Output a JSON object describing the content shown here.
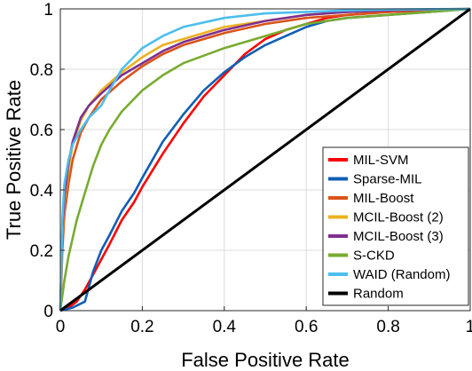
{
  "chart_data": {
    "type": "line",
    "xlabel": "False Positive Rate",
    "ylabel": "True Positive Rate",
    "xlim": [
      0,
      1
    ],
    "ylim": [
      0,
      1
    ],
    "xticks": [
      "0",
      "0.2",
      "0.4",
      "0.6",
      "0.8",
      "1"
    ],
    "yticks": [
      "0",
      "0.2",
      "0.4",
      "0.6",
      "0.8",
      "1"
    ],
    "grid": true,
    "legend_position": "bottom-right",
    "series": [
      {
        "name": "MIL-SVM",
        "color": "#ff0000",
        "x": [
          0,
          0.02,
          0.04,
          0.06,
          0.08,
          0.1,
          0.12,
          0.15,
          0.18,
          0.2,
          0.25,
          0.3,
          0.35,
          0.4,
          0.45,
          0.5,
          0.55,
          0.6,
          0.65,
          0.7,
          0.8,
          0.9,
          1.0
        ],
        "y": [
          0,
          0.01,
          0.03,
          0.07,
          0.12,
          0.17,
          0.22,
          0.3,
          0.36,
          0.41,
          0.52,
          0.62,
          0.71,
          0.78,
          0.85,
          0.9,
          0.93,
          0.95,
          0.97,
          0.98,
          0.99,
          0.995,
          1.0
        ]
      },
      {
        "name": "Sparse-MIL",
        "color": "#0e5fb5",
        "x": [
          0,
          0.03,
          0.06,
          0.08,
          0.1,
          0.12,
          0.15,
          0.18,
          0.2,
          0.25,
          0.3,
          0.35,
          0.4,
          0.45,
          0.5,
          0.55,
          0.6,
          0.65,
          0.7,
          0.8,
          0.9,
          1.0
        ],
        "y": [
          0,
          0.01,
          0.03,
          0.13,
          0.2,
          0.25,
          0.33,
          0.39,
          0.44,
          0.56,
          0.65,
          0.73,
          0.79,
          0.84,
          0.88,
          0.91,
          0.94,
          0.96,
          0.97,
          0.98,
          0.99,
          1.0
        ]
      },
      {
        "name": "MIL-Boost",
        "color": "#d95319",
        "x": [
          0,
          0.005,
          0.01,
          0.02,
          0.03,
          0.05,
          0.07,
          0.1,
          0.15,
          0.2,
          0.25,
          0.3,
          0.4,
          0.5,
          0.6,
          0.7,
          0.8,
          0.9,
          1.0
        ],
        "y": [
          0,
          0.2,
          0.32,
          0.42,
          0.5,
          0.59,
          0.64,
          0.7,
          0.76,
          0.81,
          0.85,
          0.88,
          0.92,
          0.95,
          0.97,
          0.98,
          0.99,
          0.995,
          1.0
        ]
      },
      {
        "name": "MCIL-Boost (2)",
        "color": "#edb120",
        "x": [
          0,
          0.005,
          0.01,
          0.02,
          0.03,
          0.05,
          0.07,
          0.1,
          0.15,
          0.2,
          0.25,
          0.3,
          0.4,
          0.5,
          0.6,
          0.7,
          0.8,
          0.9,
          1.0
        ],
        "y": [
          0,
          0.25,
          0.36,
          0.47,
          0.55,
          0.63,
          0.68,
          0.73,
          0.79,
          0.84,
          0.88,
          0.9,
          0.94,
          0.96,
          0.98,
          0.99,
          0.995,
          0.998,
          1.0
        ]
      },
      {
        "name": "MCIL-Boost (3)",
        "color": "#7e2f8e",
        "x": [
          0,
          0.005,
          0.01,
          0.02,
          0.03,
          0.05,
          0.07,
          0.1,
          0.15,
          0.2,
          0.25,
          0.3,
          0.4,
          0.5,
          0.6,
          0.7,
          0.8,
          0.9,
          1.0
        ],
        "y": [
          0,
          0.27,
          0.38,
          0.49,
          0.56,
          0.64,
          0.68,
          0.72,
          0.78,
          0.82,
          0.86,
          0.89,
          0.93,
          0.96,
          0.98,
          0.99,
          0.995,
          0.998,
          1.0
        ]
      },
      {
        "name": "S-CKD",
        "color": "#77ac30",
        "x": [
          0,
          0.01,
          0.02,
          0.04,
          0.06,
          0.08,
          0.1,
          0.12,
          0.15,
          0.2,
          0.25,
          0.3,
          0.4,
          0.5,
          0.6,
          0.7,
          0.8,
          0.9,
          1.0
        ],
        "y": [
          0,
          0.1,
          0.18,
          0.3,
          0.39,
          0.48,
          0.55,
          0.6,
          0.66,
          0.73,
          0.78,
          0.82,
          0.87,
          0.91,
          0.95,
          0.97,
          0.98,
          0.99,
          1.0
        ]
      },
      {
        "name": "WAID (Random)",
        "color": "#4dbeee",
        "x": [
          0,
          0.005,
          0.01,
          0.02,
          0.03,
          0.05,
          0.07,
          0.1,
          0.12,
          0.15,
          0.2,
          0.25,
          0.3,
          0.4,
          0.5,
          0.6,
          0.7,
          0.8,
          0.9,
          1.0
        ],
        "y": [
          0,
          0.3,
          0.42,
          0.5,
          0.55,
          0.6,
          0.64,
          0.68,
          0.73,
          0.8,
          0.87,
          0.91,
          0.94,
          0.97,
          0.985,
          0.99,
          0.995,
          0.998,
          0.999,
          1.0
        ]
      },
      {
        "name": "Random",
        "color": "#000000",
        "x": [
          0,
          1
        ],
        "y": [
          0,
          1
        ]
      }
    ]
  }
}
